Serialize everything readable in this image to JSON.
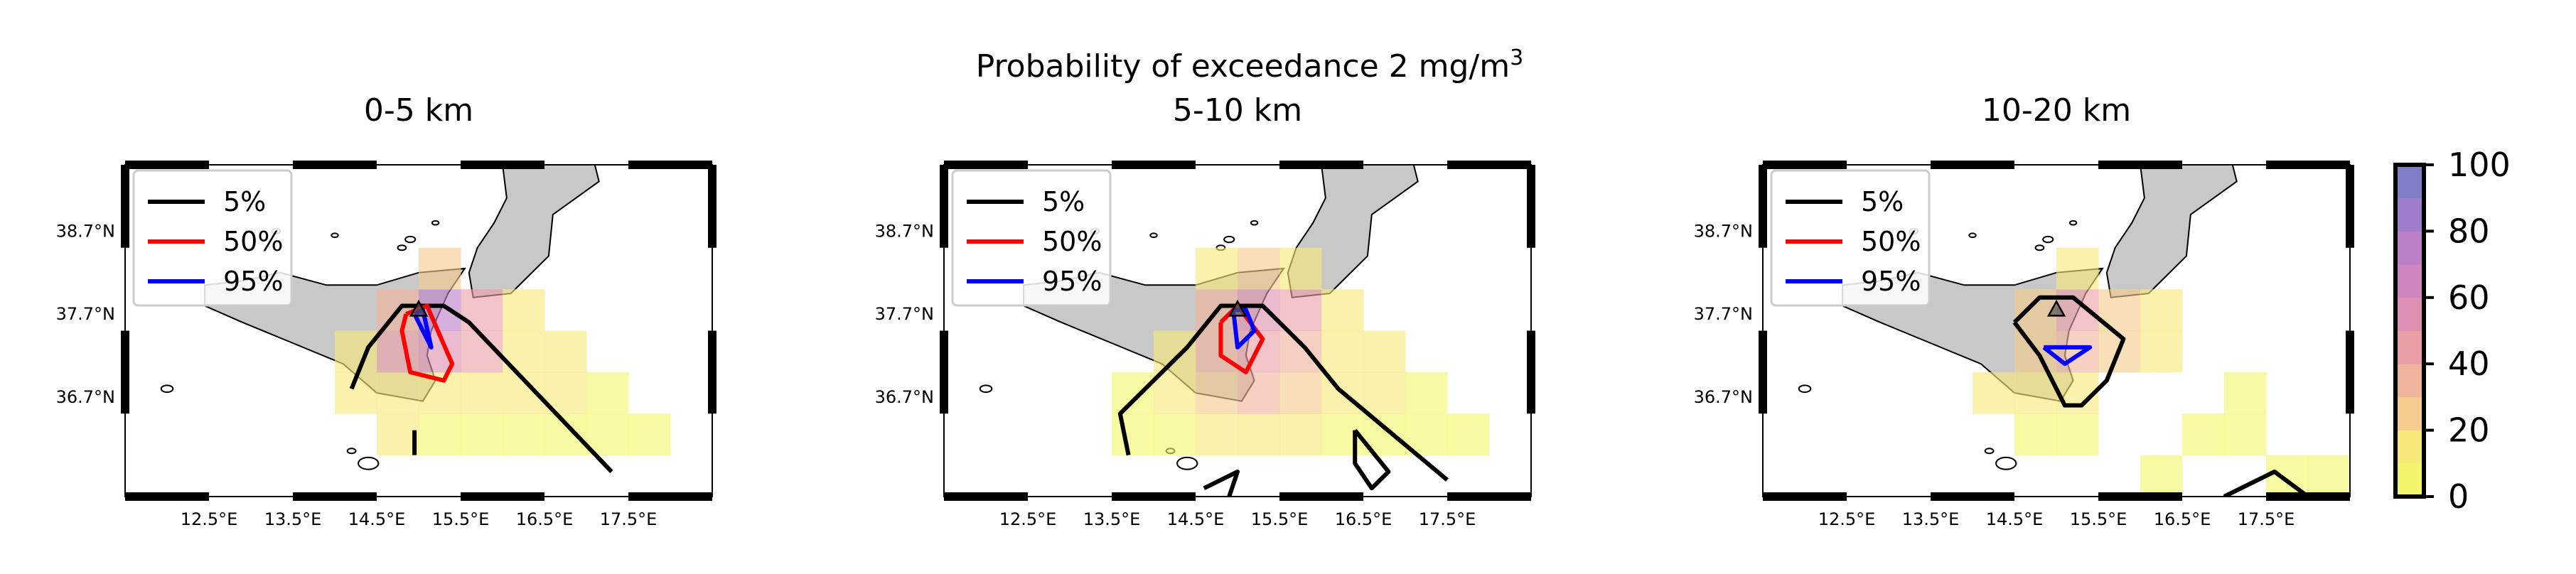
{
  "figure": {
    "suptitle_main": "Probability of exceedance 2 mg/m",
    "suptitle_sup": "3"
  },
  "chart_data": [
    {
      "type": "heatmap",
      "title": "0-5 km",
      "xlabel": "",
      "ylabel": "",
      "xlim": [
        11.5,
        18.5
      ],
      "ylim": [
        35.5,
        39.5
      ],
      "xticks": [
        "12.5°E",
        "13.5°E",
        "14.5°E",
        "15.5°E",
        "16.5°E",
        "17.5°E"
      ],
      "yticks": [
        "38.7°N",
        "37.7°N",
        "36.7°N"
      ],
      "legend": {
        "placement": "top-left",
        "entries": [
          "5%",
          "50%",
          "95%"
        ]
      },
      "volcano": {
        "lon": 15.0,
        "lat": 37.75
      },
      "cells": [
        [
          14.5,
          36.0,
          10
        ],
        [
          15.0,
          36.0,
          8
        ],
        [
          15.5,
          36.0,
          8
        ],
        [
          16.0,
          36.0,
          6
        ],
        [
          16.5,
          36.0,
          5
        ],
        [
          17.0,
          36.0,
          4
        ],
        [
          17.5,
          36.0,
          3
        ],
        [
          14.5,
          36.5,
          14
        ],
        [
          15.0,
          36.5,
          18
        ],
        [
          15.5,
          36.5,
          16
        ],
        [
          16.0,
          36.5,
          12
        ],
        [
          16.5,
          36.5,
          10
        ],
        [
          17.0,
          36.5,
          8
        ],
        [
          14.0,
          36.5,
          10
        ],
        [
          14.0,
          37.0,
          12
        ],
        [
          14.5,
          37.0,
          40
        ],
        [
          15.0,
          37.0,
          55
        ],
        [
          15.5,
          37.0,
          45
        ],
        [
          16.0,
          37.0,
          15
        ],
        [
          16.5,
          37.0,
          10
        ],
        [
          14.5,
          37.5,
          35
        ],
        [
          15.0,
          37.5,
          70
        ],
        [
          15.5,
          37.5,
          45
        ],
        [
          16.0,
          37.5,
          12
        ],
        [
          15.0,
          38.0,
          20
        ]
      ],
      "contours": {
        "5%": [
          [
            [
              14.2,
              36.8
            ],
            [
              14.4,
              37.3
            ],
            [
              14.8,
              37.8
            ],
            [
              15.3,
              37.8
            ],
            [
              15.6,
              37.6
            ],
            [
              17.3,
              35.8
            ]
          ],
          [
            [
              14.95,
              36.0
            ],
            [
              14.95,
              36.3
            ]
          ]
        ],
        "50%": [
          [
            [
              14.85,
              37.7
            ],
            [
              15.1,
              37.8
            ],
            [
              15.4,
              37.1
            ],
            [
              15.3,
              36.9
            ],
            [
              14.9,
              37.0
            ],
            [
              14.8,
              37.5
            ],
            [
              14.85,
              37.7
            ]
          ]
        ],
        "95%": [
          [
            [
              14.95,
              37.7
            ],
            [
              15.05,
              37.75
            ],
            [
              15.15,
              37.3
            ],
            [
              14.95,
              37.7
            ]
          ]
        ]
      }
    },
    {
      "type": "heatmap",
      "title": "5-10 km",
      "xlabel": "",
      "ylabel": "",
      "xlim": [
        11.5,
        18.5
      ],
      "ylim": [
        35.5,
        39.5
      ],
      "xticks": [
        "12.5°E",
        "13.5°E",
        "14.5°E",
        "15.5°E",
        "16.5°E",
        "17.5°E"
      ],
      "yticks": [
        "38.7°N",
        "37.7°N",
        "36.7°N"
      ],
      "legend": {
        "placement": "top-left",
        "entries": [
          "5%",
          "50%",
          "95%"
        ]
      },
      "volcano": {
        "lon": 15.0,
        "lat": 37.75
      },
      "cells": [
        [
          13.5,
          36.0,
          6
        ],
        [
          14.0,
          36.0,
          8
        ],
        [
          14.5,
          36.0,
          12
        ],
        [
          15.0,
          36.0,
          12
        ],
        [
          15.5,
          36.0,
          10
        ],
        [
          16.0,
          36.0,
          8
        ],
        [
          16.5,
          36.0,
          6
        ],
        [
          17.0,
          36.0,
          5
        ],
        [
          17.5,
          36.0,
          4
        ],
        [
          13.5,
          36.5,
          8
        ],
        [
          14.0,
          36.5,
          12
        ],
        [
          14.5,
          36.5,
          25
        ],
        [
          15.0,
          36.5,
          30
        ],
        [
          15.5,
          36.5,
          20
        ],
        [
          16.0,
          36.5,
          12
        ],
        [
          16.5,
          36.5,
          10
        ],
        [
          17.0,
          36.5,
          8
        ],
        [
          14.0,
          37.0,
          14
        ],
        [
          14.5,
          37.0,
          35
        ],
        [
          15.0,
          37.0,
          45
        ],
        [
          15.5,
          37.0,
          35
        ],
        [
          16.0,
          37.0,
          15
        ],
        [
          16.5,
          37.0,
          10
        ],
        [
          14.5,
          37.5,
          30
        ],
        [
          15.0,
          37.5,
          55
        ],
        [
          15.5,
          37.5,
          40
        ],
        [
          16.0,
          37.5,
          12
        ],
        [
          14.5,
          38.0,
          10
        ],
        [
          15.0,
          38.0,
          25
        ],
        [
          15.5,
          38.0,
          15
        ]
      ],
      "contours": {
        "5%": [
          [
            [
              13.7,
              36.0
            ],
            [
              13.6,
              36.5
            ],
            [
              14.2,
              37.1
            ],
            [
              14.4,
              37.3
            ],
            [
              14.8,
              37.8
            ],
            [
              15.3,
              37.8
            ],
            [
              15.8,
              37.3
            ],
            [
              16.2,
              36.8
            ],
            [
              17.5,
              35.7
            ]
          ],
          [
            [
              16.4,
              36.3
            ],
            [
              16.8,
              35.8
            ],
            [
              16.6,
              35.6
            ],
            [
              16.4,
              35.9
            ],
            [
              16.4,
              36.3
            ]
          ],
          [
            [
              14.6,
              35.6
            ],
            [
              15.0,
              35.8
            ],
            [
              14.9,
              35.5
            ]
          ]
        ],
        "50%": [
          [
            [
              14.8,
              37.6
            ],
            [
              15.0,
              37.8
            ],
            [
              15.3,
              37.4
            ],
            [
              15.1,
              37.0
            ],
            [
              14.8,
              37.2
            ],
            [
              14.8,
              37.6
            ]
          ]
        ],
        "95%": [
          [
            [
              14.95,
              37.75
            ],
            [
              15.1,
              37.75
            ],
            [
              15.2,
              37.5
            ],
            [
              15.0,
              37.3
            ],
            [
              14.95,
              37.75
            ]
          ]
        ]
      }
    },
    {
      "type": "heatmap",
      "title": "10-20 km",
      "xlabel": "",
      "ylabel": "",
      "xlim": [
        11.5,
        18.5
      ],
      "ylim": [
        35.5,
        39.5
      ],
      "xticks": [
        "12.5°E",
        "13.5°E",
        "14.5°E",
        "15.5°E",
        "16.5°E",
        "17.5°E"
      ],
      "yticks": [
        "38.7°N",
        "37.7°N",
        "36.7°N"
      ],
      "legend": {
        "placement": "top-left",
        "entries": [
          "5%",
          "50%",
          "95%"
        ]
      },
      "volcano": {
        "lon": 15.0,
        "lat": 37.75
      },
      "cells": [
        [
          14.0,
          36.5,
          10
        ],
        [
          14.5,
          36.5,
          12
        ],
        [
          15.0,
          36.5,
          10
        ],
        [
          14.5,
          37.0,
          20
        ],
        [
          15.0,
          37.0,
          30
        ],
        [
          15.5,
          37.0,
          25
        ],
        [
          16.0,
          37.0,
          12
        ],
        [
          14.5,
          37.5,
          25
        ],
        [
          15.0,
          37.5,
          40
        ],
        [
          15.5,
          37.5,
          25
        ],
        [
          16.0,
          37.5,
          10
        ],
        [
          15.0,
          38.0,
          15
        ],
        [
          15.0,
          36.0,
          6
        ],
        [
          14.5,
          36.0,
          6
        ],
        [
          16.5,
          36.0,
          5
        ],
        [
          17.0,
          36.0,
          5
        ],
        [
          17.0,
          36.5,
          6
        ],
        [
          16.0,
          35.5,
          5
        ],
        [
          17.5,
          35.5,
          4
        ],
        [
          18.0,
          35.5,
          4
        ]
      ],
      "contours": {
        "5%": [
          [
            [
              14.5,
              37.6
            ],
            [
              14.8,
              37.9
            ],
            [
              15.2,
              37.9
            ],
            [
              15.8,
              37.4
            ],
            [
              15.6,
              36.9
            ],
            [
              15.3,
              36.6
            ],
            [
              15.1,
              36.6
            ],
            [
              14.8,
              37.2
            ],
            [
              14.5,
              37.6
            ]
          ],
          [
            [
              17.0,
              35.5
            ],
            [
              17.6,
              35.8
            ],
            [
              18.0,
              35.5
            ]
          ]
        ],
        "50%": [],
        "95%": [
          [
            [
              14.85,
              37.3
            ],
            [
              15.4,
              37.3
            ],
            [
              15.1,
              37.1
            ],
            [
              14.85,
              37.3
            ]
          ]
        ]
      }
    }
  ],
  "colorbar": {
    "ticks": [
      100,
      80,
      60,
      40,
      20,
      0
    ],
    "range": [
      0,
      100
    ],
    "colors": [
      "#f2f56a",
      "#f7e979",
      "#f6cc8c",
      "#f0b49c",
      "#ea9fa7",
      "#dd8fb2",
      "#cf86be",
      "#bb80c6",
      "#a07ccc",
      "#7f7fc8"
    ]
  },
  "colors": {
    "contour_5": "#000000",
    "contour_50": "#ff0000",
    "contour_95": "#0000ff",
    "land": "#c8c8c8"
  }
}
